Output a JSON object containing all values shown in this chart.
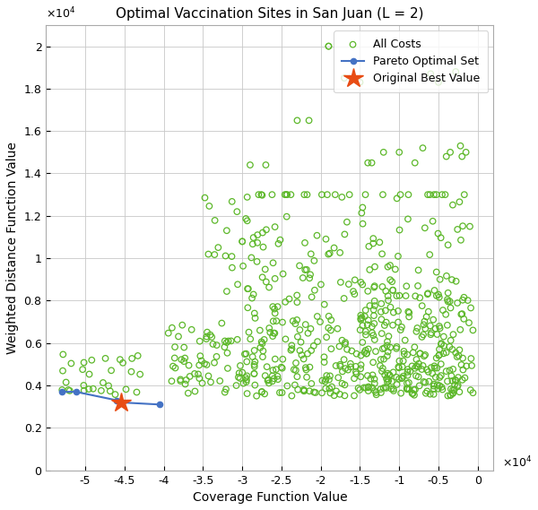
{
  "title": "Optimal Vaccination Sites in San Juan (L = 2)",
  "xlabel": "Coverage Function Value",
  "ylabel": "Weighted Distance Function Value",
  "xlim": [
    -55000,
    2000
  ],
  "ylim": [
    0,
    21000
  ],
  "xticks": [
    -50000,
    -45000,
    -40000,
    -35000,
    -30000,
    -25000,
    -20000,
    -15000,
    -10000,
    -5000,
    0
  ],
  "yticks": [
    0,
    2000,
    4000,
    6000,
    8000,
    10000,
    12000,
    14000,
    16000,
    18000,
    20000
  ],
  "xticklabels": [
    "-5",
    "-4.5",
    "-4",
    "-3.5",
    "-3",
    "-2.5",
    "-2",
    "-1.5",
    "-1",
    "-0.5",
    "0"
  ],
  "yticklabels": [
    "0",
    "0.2",
    "0.4",
    "0.6",
    "0.8",
    "1",
    "1.2",
    "1.4",
    "1.6",
    "1.8",
    "2"
  ],
  "pareto_x": [
    -53000,
    -51200,
    -46000,
    -45500,
    -40500
  ],
  "pareto_y": [
    3700,
    3700,
    3300,
    3200,
    3100
  ],
  "star_x": -45500,
  "star_y": 3200,
  "scatter_color": "#5db82a",
  "pareto_color": "#4472c4",
  "star_color": "#e84c14",
  "background_color": "#ffffff",
  "grid_color": "#c8c8c8",
  "seed": 7
}
